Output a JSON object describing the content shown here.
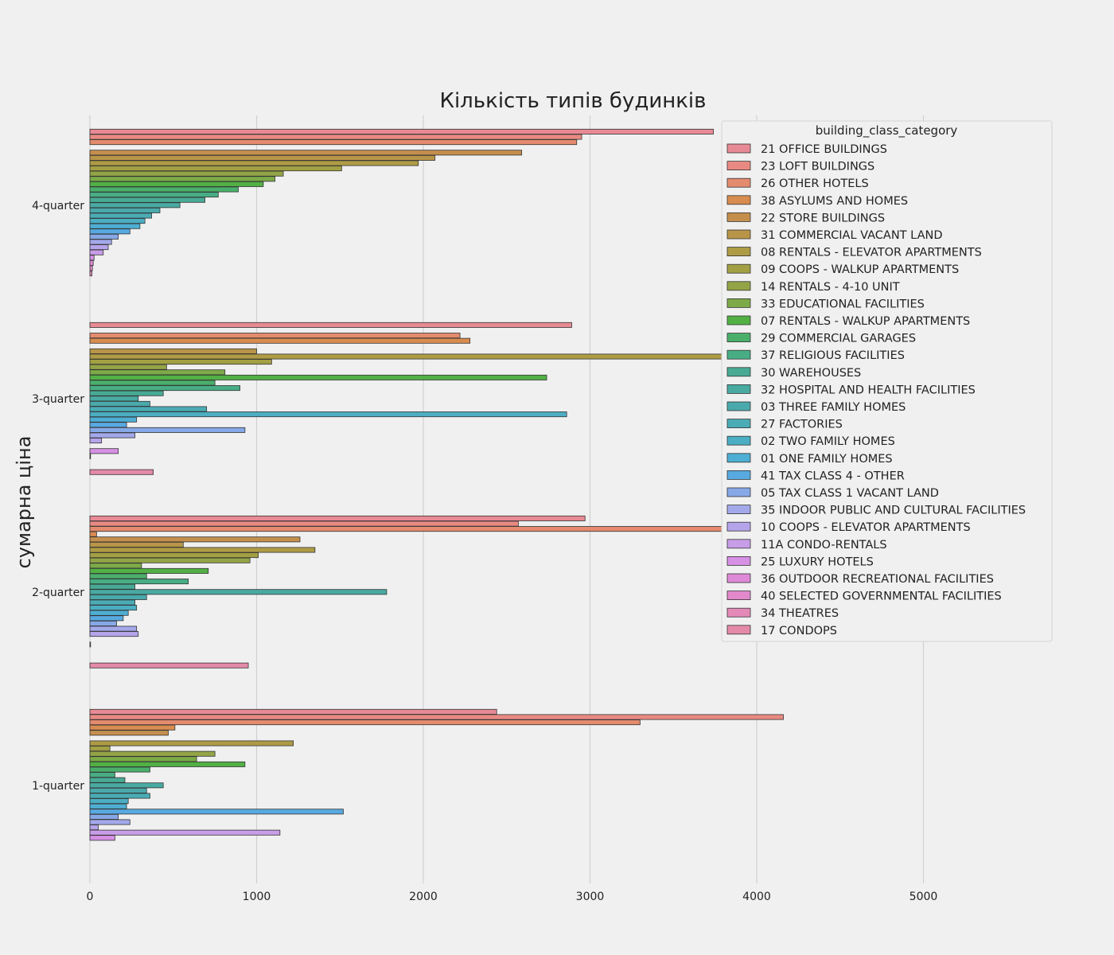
{
  "chart_data": {
    "type": "bar",
    "orientation": "horizontal",
    "title": "Кількість типів будинків",
    "ylabel": "сумарна ціна",
    "xlabel": "",
    "xlim": [
      0,
      5600
    ],
    "x_ticks": [
      0,
      1000,
      2000,
      3000,
      4000,
      5000
    ],
    "grid": true,
    "legend_title": "building_class_category",
    "legend_position": "top-right",
    "categories": [
      "4-quarter",
      "3-quarter",
      "2-quarter",
      "1-quarter"
    ],
    "series": [
      {
        "name": "21  OFFICE BUILDINGS",
        "color": "#e88a95",
        "values": [
          3740,
          2890,
          2970,
          2440
        ]
      },
      {
        "name": "23  LOFT BUILDINGS",
        "color": "#e88a82",
        "values": [
          2950,
          0,
          2570,
          4160
        ]
      },
      {
        "name": "26  OTHER HOTELS",
        "color": "#e48b6e",
        "values": [
          2920,
          2220,
          5530,
          3300
        ]
      },
      {
        "name": "38  ASYLUMS AND HOMES",
        "color": "#d88c4f",
        "values": [
          0,
          2280,
          40,
          510
        ]
      },
      {
        "name": "22  STORE BUILDINGS",
        "color": "#c48f4d",
        "values": [
          2590,
          0,
          1260,
          470
        ]
      },
      {
        "name": "31  COMMERCIAL VACANT LAND",
        "color": "#b99548",
        "values": [
          2070,
          1000,
          560,
          0
        ]
      },
      {
        "name": "08  RENTALS - ELEVATOR APARTMENTS",
        "color": "#ae9b45",
        "values": [
          1970,
          5260,
          1350,
          1220
        ]
      },
      {
        "name": "09  COOPS - WALKUP APARTMENTS",
        "color": "#a3a044",
        "values": [
          1510,
          1090,
          1010,
          120
        ]
      },
      {
        "name": "14  RENTALS - 4-10 UNIT",
        "color": "#93a446",
        "values": [
          1160,
          460,
          960,
          750
        ]
      },
      {
        "name": "33  EDUCATIONAL FACILITIES",
        "color": "#7daa48",
        "values": [
          1110,
          810,
          310,
          640
        ]
      },
      {
        "name": "07  RENTALS - WALKUP APARTMENTS",
        "color": "#52b045",
        "values": [
          1040,
          2740,
          710,
          930
        ]
      },
      {
        "name": "29  COMMERCIAL GARAGES",
        "color": "#4aaf6b",
        "values": [
          890,
          750,
          340,
          360
        ]
      },
      {
        "name": "37  RELIGIOUS FACILITIES",
        "color": "#48ad84",
        "values": [
          770,
          900,
          590,
          150
        ]
      },
      {
        "name": "30  WAREHOUSES",
        "color": "#48aa94",
        "values": [
          690,
          440,
          270,
          210
        ]
      },
      {
        "name": "32  HOSPITAL AND HEALTH FACILITIES",
        "color": "#49aaa2",
        "values": [
          540,
          290,
          1780,
          440
        ]
      },
      {
        "name": "03  THREE FAMILY HOMES",
        "color": "#4aa9ab",
        "values": [
          420,
          360,
          340,
          340
        ]
      },
      {
        "name": "27  FACTORIES",
        "color": "#4bacb5",
        "values": [
          370,
          700,
          270,
          360
        ]
      },
      {
        "name": "02  TWO FAMILY HOMES",
        "color": "#4caec2",
        "values": [
          330,
          2860,
          280,
          230
        ]
      },
      {
        "name": "01  ONE FAMILY HOMES",
        "color": "#4eaed3",
        "values": [
          300,
          280,
          230,
          220
        ]
      },
      {
        "name": "41  TAX CLASS 4 - OTHER",
        "color": "#58a9e0",
        "values": [
          240,
          220,
          200,
          1520
        ]
      },
      {
        "name": "05  TAX CLASS 1 VACANT LAND",
        "color": "#86a8e6",
        "values": [
          170,
          930,
          160,
          170
        ]
      },
      {
        "name": "35  INDOOR PUBLIC AND CULTURAL FACILITIES",
        "color": "#a3a8ea",
        "values": [
          130,
          270,
          280,
          240
        ]
      },
      {
        "name": "10  COOPS - ELEVATOR APARTMENTS",
        "color": "#b5a4ea",
        "values": [
          110,
          70,
          290,
          50
        ]
      },
      {
        "name": "11A CONDO-RENTALS",
        "color": "#c89de8",
        "values": [
          80,
          0,
          0,
          1140
        ]
      },
      {
        "name": "25  LUXURY HOTELS",
        "color": "#d690e4",
        "values": [
          25,
          170,
          4,
          150
        ]
      },
      {
        "name": "36  OUTDOOR RECREATIONAL FACILITIES",
        "color": "#df8ad8",
        "values": [
          20,
          3,
          0,
          0
        ]
      },
      {
        "name": "40  SELECTED GOVERNMENTAL FACILITIES",
        "color": "#e289cc",
        "values": [
          15,
          0,
          0,
          0
        ]
      },
      {
        "name": "34  THEATRES",
        "color": "#e48ab8",
        "values": [
          12,
          0,
          0,
          0
        ]
      },
      {
        "name": "17  CONDOPS",
        "color": "#e48aa8",
        "values": [
          0,
          380,
          950,
          0
        ]
      }
    ]
  }
}
